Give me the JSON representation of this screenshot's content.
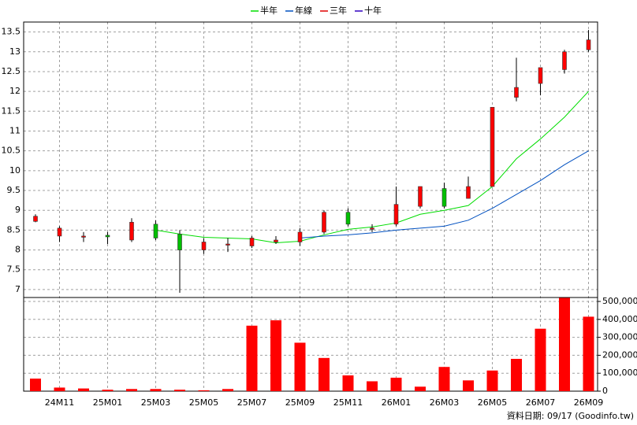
{
  "chart_data": {
    "type": "candlestick",
    "categories": [
      null,
      "24M11",
      null,
      "25M01",
      null,
      "25M03",
      null,
      "25M05",
      null,
      "25M07",
      null,
      "25M09",
      null,
      "25M11",
      null,
      "26M01",
      null,
      "26M03",
      null,
      "26M05",
      null,
      "26M07",
      null,
      "26M09"
    ],
    "open": [
      8.72,
      8.35,
      8.33,
      8.37,
      8.25,
      8.65,
      8.4,
      8.0,
      8.15,
      8.1,
      8.2,
      8.2,
      8.45,
      8.95,
      8.53,
      8.65,
      9.1,
      9.55,
      9.3,
      9.6,
      11.85,
      12.2,
      12.55,
      13.05
    ],
    "high": [
      8.9,
      8.6,
      8.45,
      8.45,
      8.8,
      8.75,
      8.5,
      8.3,
      8.3,
      8.35,
      8.35,
      8.55,
      9.0,
      9.05,
      8.65,
      9.6,
      9.6,
      9.7,
      9.85,
      11.6,
      12.85,
      12.6,
      13.05,
      13.55
    ],
    "low": [
      8.7,
      8.2,
      8.2,
      8.15,
      8.2,
      8.25,
      6.92,
      7.9,
      7.95,
      8.05,
      8.15,
      8.1,
      8.4,
      8.6,
      8.45,
      8.6,
      9.05,
      9.05,
      9.3,
      9.6,
      11.75,
      11.9,
      12.45,
      13.0
    ],
    "close": [
      8.85,
      8.55,
      8.35,
      8.33,
      8.7,
      8.3,
      8.0,
      8.2,
      8.15,
      8.3,
      8.25,
      8.45,
      8.95,
      8.65,
      8.55,
      9.15,
      9.6,
      9.1,
      9.6,
      11.6,
      12.1,
      12.6,
      13.0,
      13.3
    ],
    "up_color": "#ff0000",
    "down_color": "#00c000",
    "series": [
      {
        "name": "半年",
        "color": "#00dd00",
        "values": [
          null,
          null,
          null,
          null,
          null,
          8.5,
          8.4,
          8.32,
          8.3,
          8.28,
          8.18,
          8.22,
          8.38,
          8.52,
          8.58,
          8.68,
          8.9,
          9.0,
          9.12,
          9.6,
          10.3,
          10.8,
          11.35,
          12.0
        ]
      },
      {
        "name": "年線",
        "color": "#0050c0",
        "values": [
          null,
          null,
          null,
          null,
          null,
          null,
          null,
          null,
          null,
          null,
          null,
          8.3,
          8.35,
          8.38,
          8.43,
          8.5,
          8.55,
          8.6,
          8.75,
          9.05,
          9.4,
          9.75,
          10.15,
          10.5
        ]
      },
      {
        "name": "三年",
        "color": "#e00000",
        "values": [
          null,
          null,
          null,
          null,
          null,
          null,
          null,
          null,
          null,
          null,
          null,
          null,
          null,
          null,
          null,
          null,
          null,
          null,
          null,
          null,
          null,
          null,
          null,
          null
        ]
      },
      {
        "name": "十年",
        "color": "#3000c0",
        "values": [
          null,
          null,
          null,
          null,
          null,
          null,
          null,
          null,
          null,
          null,
          null,
          null,
          null,
          null,
          null,
          null,
          null,
          null,
          null,
          null,
          null,
          null,
          null,
          null
        ]
      }
    ],
    "ylim": [
      6.8,
      13.75
    ],
    "yticks": [
      7,
      7.5,
      8,
      8.5,
      9,
      9.5,
      10,
      10.5,
      11,
      11.5,
      12,
      12.5,
      13,
      13.5
    ],
    "volume": [
      70000,
      20000,
      15000,
      8000,
      12000,
      12000,
      8000,
      5000,
      12000,
      365000,
      395000,
      270000,
      185000,
      88000,
      55000,
      75000,
      25000,
      135000,
      60000,
      115000,
      180000,
      348000,
      520000,
      415000
    ],
    "volume_color": "#ff0000",
    "y2lim": [
      0,
      522000
    ],
    "y2ticks": [
      0,
      {
        "value": 100000,
        "label": "100,000"
      },
      {
        "value": 200000,
        "label": "200,000"
      },
      {
        "value": 300000,
        "label": "300,000"
      },
      {
        "value": 400000,
        "label": "400,000"
      },
      {
        "value": 500000,
        "label": "500,000"
      }
    ],
    "grid": true,
    "footer": "資料日期: 09/17 (Goodinfo.tw)"
  }
}
